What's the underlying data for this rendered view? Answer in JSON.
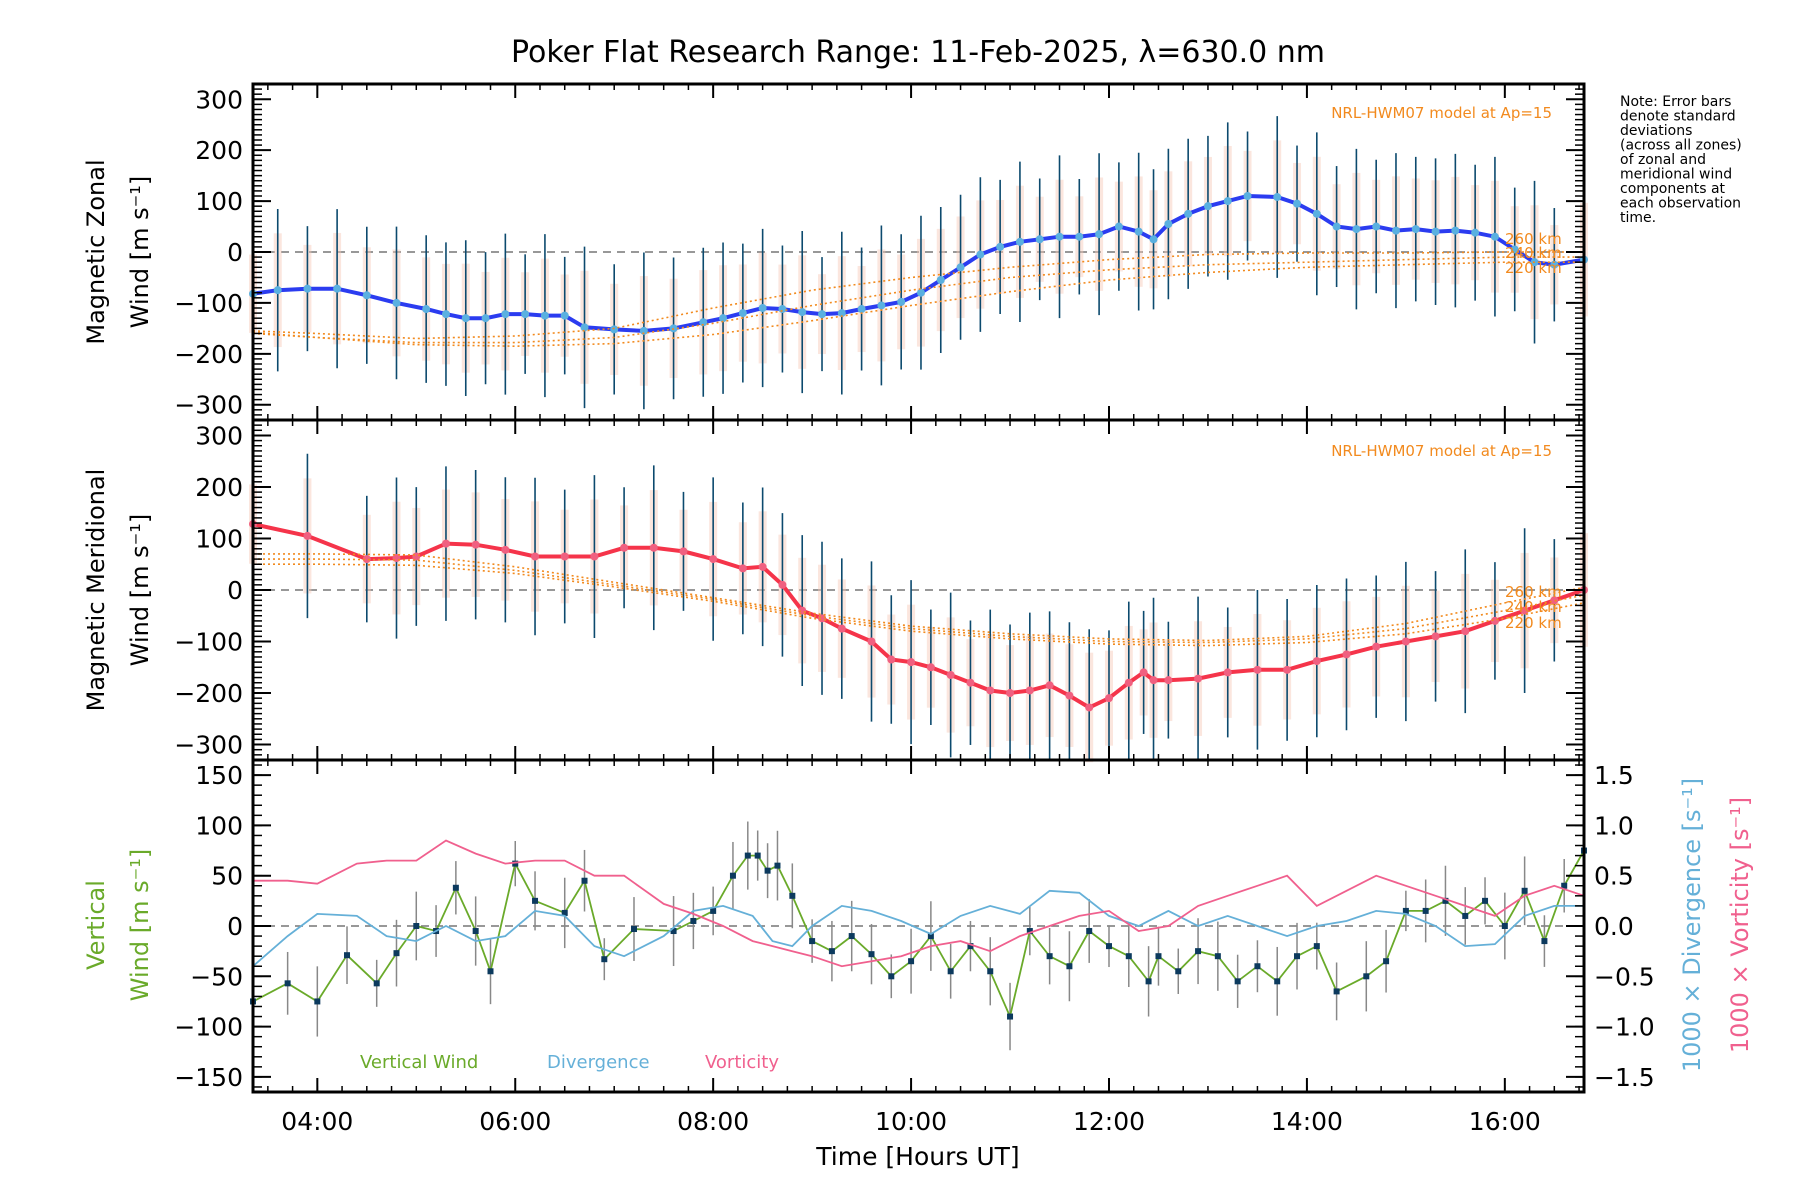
{
  "chart_data": [
    {
      "type": "line",
      "title": "Poker Flat Research Range: 11-Feb-2025, λ=630.0 nm",
      "panel": "top",
      "ylabel_line1": "Magnetic Zonal",
      "ylabel_line2": "Wind [m s⁻¹]",
      "ylim": [
        -330,
        330
      ],
      "yticks": [
        300,
        200,
        100,
        0,
        -100,
        -200,
        -300
      ],
      "xlim": [
        3.35,
        16.8
      ],
      "model_label": "NRL-HWM07 model at Ap=15",
      "model_altitudes": [
        "260 km",
        "240 km",
        "220 km"
      ],
      "series": [
        {
          "name": "Zonal wind",
          "color": "#2b3cf0",
          "x": [
            3.35,
            3.6,
            3.9,
            4.2,
            4.5,
            4.8,
            5.1,
            5.3,
            5.5,
            5.7,
            5.9,
            6.1,
            6.3,
            6.5,
            6.7,
            7.0,
            7.3,
            7.6,
            7.9,
            8.1,
            8.3,
            8.5,
            8.7,
            8.9,
            9.1,
            9.3,
            9.5,
            9.7,
            9.9,
            10.1,
            10.3,
            10.5,
            10.7,
            10.9,
            11.1,
            11.3,
            11.5,
            11.7,
            11.9,
            12.1,
            12.3,
            12.45,
            12.6,
            12.8,
            13.0,
            13.2,
            13.4,
            13.7,
            13.9,
            14.1,
            14.3,
            14.5,
            14.7,
            14.9,
            15.1,
            15.3,
            15.5,
            15.7,
            15.9,
            16.1,
            16.3,
            16.5,
            16.8
          ],
          "y": [
            -82,
            -75,
            -72,
            -72,
            -85,
            -100,
            -112,
            -122,
            -130,
            -130,
            -122,
            -122,
            -125,
            -125,
            -148,
            -152,
            -155,
            -150,
            -138,
            -130,
            -120,
            -110,
            -112,
            -118,
            -122,
            -120,
            -112,
            -105,
            -98,
            -80,
            -55,
            -30,
            -5,
            10,
            20,
            25,
            30,
            30,
            35,
            50,
            40,
            25,
            55,
            75,
            90,
            100,
            110,
            108,
            95,
            75,
            50,
            45,
            50,
            42,
            45,
            40,
            42,
            38,
            30,
            5,
            -20,
            -25,
            -15
          ]
        },
        {
          "name": "HWM 260 km",
          "color": "#f28a1e",
          "dotted": true,
          "x": [
            3.35,
            4,
            5,
            6,
            7,
            8,
            9,
            10,
            11,
            12,
            13,
            14,
            15,
            16,
            16.8
          ],
          "y": [
            -155,
            -160,
            -170,
            -165,
            -150,
            -110,
            -75,
            -50,
            -30,
            -15,
            -5,
            -2,
            -2,
            0,
            0
          ]
        },
        {
          "name": "HWM 240 km",
          "color": "#f28a1e",
          "dotted": true,
          "x": [
            3.35,
            4,
            5,
            6,
            7,
            8,
            9,
            10,
            11,
            12,
            13,
            14,
            15,
            16,
            16.8
          ],
          "y": [
            -160,
            -168,
            -178,
            -178,
            -168,
            -140,
            -105,
            -75,
            -50,
            -35,
            -25,
            -20,
            -15,
            -10,
            -10
          ]
        },
        {
          "name": "HWM 220 km",
          "color": "#f28a1e",
          "dotted": true,
          "x": [
            3.35,
            4,
            5,
            6,
            7,
            8,
            9,
            10,
            11,
            12,
            13,
            14,
            15,
            16,
            16.8
          ],
          "y": [
            -158,
            -168,
            -182,
            -185,
            -180,
            -162,
            -135,
            -105,
            -78,
            -55,
            -40,
            -30,
            -25,
            -20,
            -20
          ]
        }
      ]
    },
    {
      "type": "line",
      "panel": "middle",
      "ylabel_line1": "Magnetic Meridional",
      "ylabel_line2": "Wind [m s⁻¹]",
      "ylim": [
        -330,
        330
      ],
      "yticks": [
        300,
        200,
        100,
        0,
        -100,
        -200,
        -300
      ],
      "xlim": [
        3.35,
        16.8
      ],
      "model_label": "NRL-HWM07 model at Ap=15",
      "model_altitudes": [
        "260 km",
        "240 km",
        "220 km"
      ],
      "series": [
        {
          "name": "Meridional wind",
          "color": "#f5344a",
          "x": [
            3.35,
            3.9,
            4.5,
            4.8,
            5.0,
            5.3,
            5.6,
            5.9,
            6.2,
            6.5,
            6.8,
            7.1,
            7.4,
            7.7,
            8.0,
            8.3,
            8.5,
            8.7,
            8.9,
            9.1,
            9.3,
            9.6,
            9.8,
            10.0,
            10.2,
            10.4,
            10.6,
            10.8,
            11.0,
            11.2,
            11.4,
            11.6,
            11.8,
            12.0,
            12.2,
            12.35,
            12.45,
            12.6,
            12.9,
            13.2,
            13.5,
            13.8,
            14.1,
            14.4,
            14.7,
            15.0,
            15.3,
            15.6,
            15.9,
            16.2,
            16.5,
            16.8
          ],
          "y": [
            128,
            105,
            60,
            62,
            65,
            90,
            88,
            78,
            65,
            65,
            65,
            82,
            82,
            75,
            60,
            42,
            45,
            10,
            -40,
            -55,
            -75,
            -100,
            -135,
            -140,
            -150,
            -165,
            -180,
            -195,
            -200,
            -195,
            -185,
            -205,
            -228,
            -210,
            -180,
            -160,
            -175,
            -175,
            -172,
            -160,
            -155,
            -155,
            -138,
            -125,
            -110,
            -100,
            -90,
            -80,
            -60,
            -40,
            -20,
            0
          ]
        },
        {
          "name": "HWM 260 km",
          "color": "#f28a1e",
          "dotted": true,
          "x": [
            3.35,
            4,
            5,
            6,
            7,
            8,
            9,
            10,
            11,
            12,
            13,
            14,
            15,
            16,
            16.8
          ],
          "y": [
            70,
            70,
            68,
            45,
            15,
            -15,
            -45,
            -70,
            -85,
            -95,
            -98,
            -90,
            -65,
            -25,
            5
          ]
        },
        {
          "name": "HWM 240 km",
          "color": "#f28a1e",
          "dotted": true,
          "x": [
            3.35,
            4,
            5,
            6,
            7,
            8,
            9,
            10,
            11,
            12,
            13,
            14,
            15,
            16,
            16.8
          ],
          "y": [
            60,
            60,
            58,
            38,
            10,
            -18,
            -50,
            -75,
            -90,
            -100,
            -102,
            -95,
            -75,
            -40,
            -10
          ]
        },
        {
          "name": "HWM 220 km",
          "color": "#f28a1e",
          "dotted": true,
          "x": [
            3.35,
            4,
            5,
            6,
            7,
            8,
            9,
            10,
            11,
            12,
            13,
            14,
            15,
            16,
            16.8
          ],
          "y": [
            50,
            50,
            48,
            32,
            6,
            -22,
            -55,
            -80,
            -95,
            -105,
            -108,
            -102,
            -85,
            -55,
            -25
          ]
        }
      ]
    },
    {
      "type": "line",
      "panel": "bottom",
      "ylabel_line1": "Vertical",
      "ylabel_line2": "Wind [m s⁻¹]",
      "y2label_div": "1000 × Divergence [s⁻¹]",
      "y2label_vort": "1000 × Vorticity [s⁻¹]",
      "ylim": [
        -165,
        165
      ],
      "yticks": [
        150,
        100,
        50,
        0,
        -50,
        -100,
        -150
      ],
      "y2lim": [
        -1.65,
        1.65
      ],
      "y2ticks": [
        "1.5",
        "1.0",
        "0.5",
        "0.0",
        "-0.5",
        "-1.0",
        "-1.5"
      ],
      "xlim": [
        3.35,
        16.8
      ],
      "xticks": [
        "04:00",
        "06:00",
        "08:00",
        "10:00",
        "12:00",
        "14:00",
        "16:00"
      ],
      "xtick_values": [
        4,
        6,
        8,
        10,
        12,
        14,
        16
      ],
      "xlabel": "Time [Hours UT]",
      "legend": [
        "Vertical Wind",
        "Divergence",
        "Vorticity"
      ],
      "series": [
        {
          "name": "Vertical Wind",
          "color": "#6aaa2a",
          "axis": "left",
          "x": [
            3.35,
            3.7,
            4.0,
            4.3,
            4.6,
            4.8,
            5.0,
            5.2,
            5.4,
            5.6,
            5.75,
            6.0,
            6.2,
            6.5,
            6.7,
            6.9,
            7.2,
            7.6,
            7.8,
            8.0,
            8.2,
            8.35,
            8.45,
            8.55,
            8.65,
            8.8,
            9.0,
            9.2,
            9.4,
            9.6,
            9.8,
            10.0,
            10.2,
            10.4,
            10.6,
            10.8,
            11.0,
            11.2,
            11.4,
            11.6,
            11.8,
            12.0,
            12.2,
            12.4,
            12.5,
            12.7,
            12.9,
            13.1,
            13.3,
            13.5,
            13.7,
            13.9,
            14.1,
            14.3,
            14.6,
            14.8,
            15.0,
            15.2,
            15.4,
            15.6,
            15.8,
            16.0,
            16.2,
            16.4,
            16.6,
            16.8
          ],
          "y": [
            -75,
            -57,
            -75,
            -29,
            -57,
            -27,
            0,
            -5,
            38,
            -5,
            -45,
            62,
            25,
            13,
            45,
            -33,
            -3,
            -5,
            5,
            15,
            50,
            70,
            70,
            55,
            60,
            30,
            -15,
            -25,
            -10,
            -28,
            -50,
            -35,
            -10,
            -45,
            -20,
            -45,
            -90,
            -5,
            -30,
            -40,
            -5,
            -20,
            -30,
            -55,
            -30,
            -45,
            -25,
            -30,
            -55,
            -40,
            -55,
            -30,
            -20,
            -65,
            -50,
            -35,
            15,
            15,
            25,
            10,
            25,
            0,
            35,
            -15,
            40,
            75
          ]
        },
        {
          "name": "Divergence",
          "color": "#65b0d8",
          "axis": "right",
          "x": [
            3.35,
            3.7,
            4.0,
            4.4,
            4.7,
            5.0,
            5.3,
            5.6,
            5.9,
            6.2,
            6.5,
            6.8,
            7.1,
            7.5,
            7.8,
            8.1,
            8.4,
            8.6,
            8.8,
            9.0,
            9.3,
            9.6,
            9.9,
            10.2,
            10.5,
            10.8,
            11.1,
            11.4,
            11.7,
            12.0,
            12.3,
            12.6,
            12.9,
            13.2,
            13.5,
            13.8,
            14.1,
            14.4,
            14.7,
            15.0,
            15.3,
            15.6,
            15.9,
            16.2,
            16.5,
            16.8
          ],
          "y": [
            -0.4,
            -0.1,
            0.12,
            0.1,
            -0.1,
            -0.15,
            0.0,
            -0.15,
            -0.1,
            0.15,
            0.1,
            -0.2,
            -0.3,
            -0.1,
            0.15,
            0.2,
            0.1,
            -0.15,
            -0.2,
            0.0,
            0.2,
            0.15,
            0.05,
            -0.08,
            0.1,
            0.2,
            0.12,
            0.35,
            0.33,
            0.1,
            0.0,
            0.15,
            0.0,
            0.1,
            0.0,
            -0.1,
            0.0,
            0.05,
            0.15,
            0.12,
            0.0,
            -0.2,
            -0.18,
            0.1,
            0.2,
            0.2
          ]
        },
        {
          "name": "Vorticity",
          "color": "#f0608e",
          "axis": "right",
          "x": [
            3.35,
            3.7,
            4.0,
            4.4,
            4.7,
            5.0,
            5.3,
            5.6,
            5.9,
            6.2,
            6.5,
            6.8,
            7.1,
            7.5,
            7.8,
            8.1,
            8.4,
            8.6,
            8.8,
            9.0,
            9.3,
            9.6,
            9.9,
            10.2,
            10.5,
            10.8,
            11.1,
            11.4,
            11.7,
            12.0,
            12.3,
            12.6,
            12.9,
            13.2,
            13.5,
            13.8,
            14.1,
            14.4,
            14.7,
            15.0,
            15.3,
            15.6,
            15.9,
            16.2,
            16.5,
            16.8
          ],
          "y": [
            0.45,
            0.45,
            0.42,
            0.62,
            0.65,
            0.65,
            0.85,
            0.72,
            0.62,
            0.65,
            0.65,
            0.5,
            0.5,
            0.22,
            0.12,
            0.0,
            -0.15,
            -0.2,
            -0.25,
            -0.3,
            -0.4,
            -0.35,
            -0.3,
            -0.2,
            -0.15,
            -0.25,
            -0.1,
            0.0,
            0.1,
            0.15,
            -0.05,
            0.0,
            0.2,
            0.3,
            0.4,
            0.5,
            0.2,
            0.35,
            0.5,
            0.4,
            0.3,
            0.2,
            0.1,
            0.3,
            0.4,
            0.3
          ]
        }
      ]
    }
  ],
  "note": [
    "Note: Error bars",
    "denote standard",
    "deviations",
    "(across all zones)",
    "of zonal and",
    "meridional wind",
    "components at",
    "each observation",
    "time."
  ]
}
